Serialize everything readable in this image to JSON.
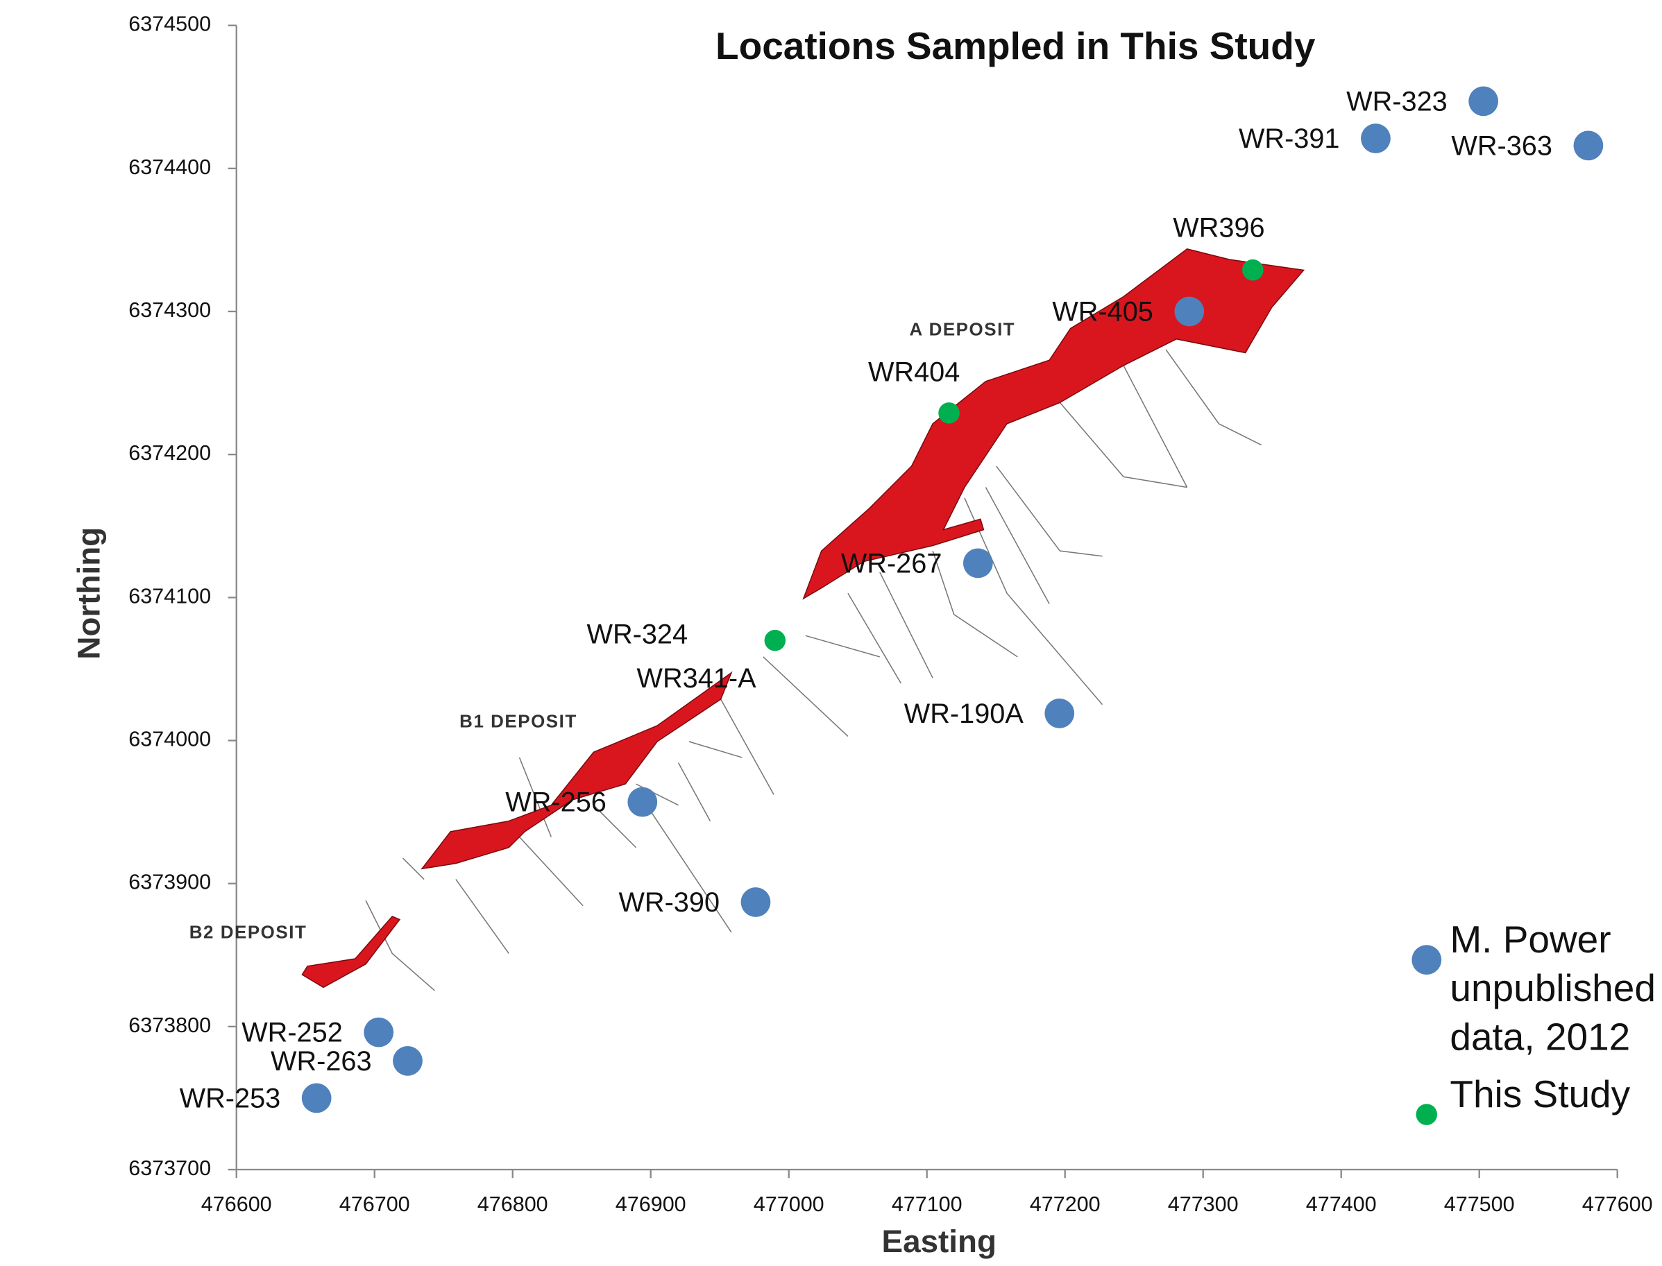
{
  "chart_data": {
    "type": "scatter",
    "title": "Locations Sampled in This Study",
    "x_label": "Easting",
    "y_label": "Northing",
    "xlim": [
      476600,
      477600
    ],
    "ylim": [
      6373700,
      6374500
    ],
    "xticks": [
      476600,
      476700,
      476800,
      476900,
      477000,
      477100,
      477200,
      477300,
      477400,
      477500,
      477600
    ],
    "yticks": [
      6373700,
      6373800,
      6373900,
      6374000,
      6374100,
      6374200,
      6374300,
      6374400,
      6374500
    ],
    "annotations": [
      "A  DEPOSIT",
      "B1  DEPOSIT",
      "B2  DEPOSIT",
      "WR341-A"
    ],
    "legend": "lower right",
    "series": [
      {
        "name": "M. Power unpublished data, 2012",
        "color": "#4f81bd",
        "labels": [
          "WR-323",
          "WR-391",
          "WR-363",
          "WR-405",
          "WR-267",
          "WR-190A",
          "WR-256",
          "WR-390",
          "WR-252",
          "WR-263",
          "WR-253"
        ],
        "x": [
          477503,
          477425,
          477579,
          477290,
          477137,
          477196,
          476894,
          476976,
          476703,
          476724,
          476658
        ],
        "values": [
          6374447,
          6374421,
          6374416,
          6374300,
          6374124,
          6374019,
          6373957,
          6373887,
          6373796,
          6373776,
          6373750
        ]
      },
      {
        "name": "This Study",
        "color": "#00b050",
        "labels": [
          "WR396",
          "WR404",
          "WR-324"
        ],
        "x": [
          477336,
          477116,
          476990
        ],
        "values": [
          6374329,
          6374229,
          6374070
        ]
      }
    ]
  }
}
